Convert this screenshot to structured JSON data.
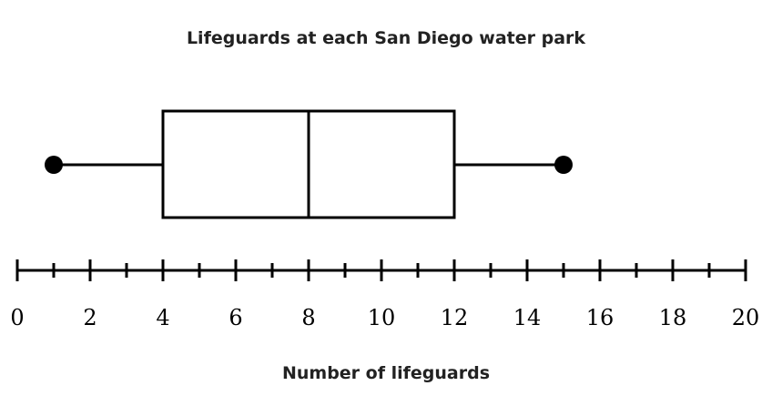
{
  "chart_data": {
    "type": "boxplot",
    "title": "Lifeguards at each San Diego water park",
    "xlabel": "Number of lifeguards",
    "xlim": [
      0,
      20
    ],
    "major_tick_step": 2,
    "minor_tick_step": 1,
    "tick_labels": [
      "0",
      "2",
      "4",
      "6",
      "8",
      "10",
      "12",
      "14",
      "16",
      "18",
      "20"
    ],
    "min": 1,
    "q1": 4,
    "median": 8,
    "q3": 12,
    "max": 15,
    "grid": false,
    "colors": {
      "stroke": "#000000",
      "background": "#ffffff"
    }
  }
}
